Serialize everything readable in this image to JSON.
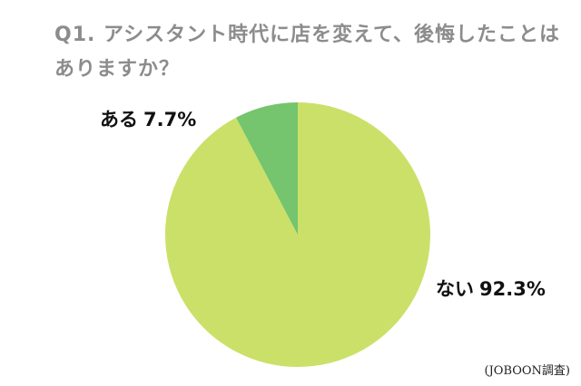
{
  "chart_data": {
    "type": "pie",
    "title": "Q1. アシスタント時代に店を変えて、後悔したことはありますか？",
    "slices": [
      {
        "label": "ない",
        "value": 92.3,
        "value_label": "92.3%",
        "color": "#cbe068"
      },
      {
        "label": "ある",
        "value": 7.7,
        "value_label": "7.7%",
        "color": "#75c46e"
      }
    ],
    "start": "12 o'clock",
    "direction": "clockwise",
    "legend": "none",
    "source": "(JOBOON調査)"
  }
}
